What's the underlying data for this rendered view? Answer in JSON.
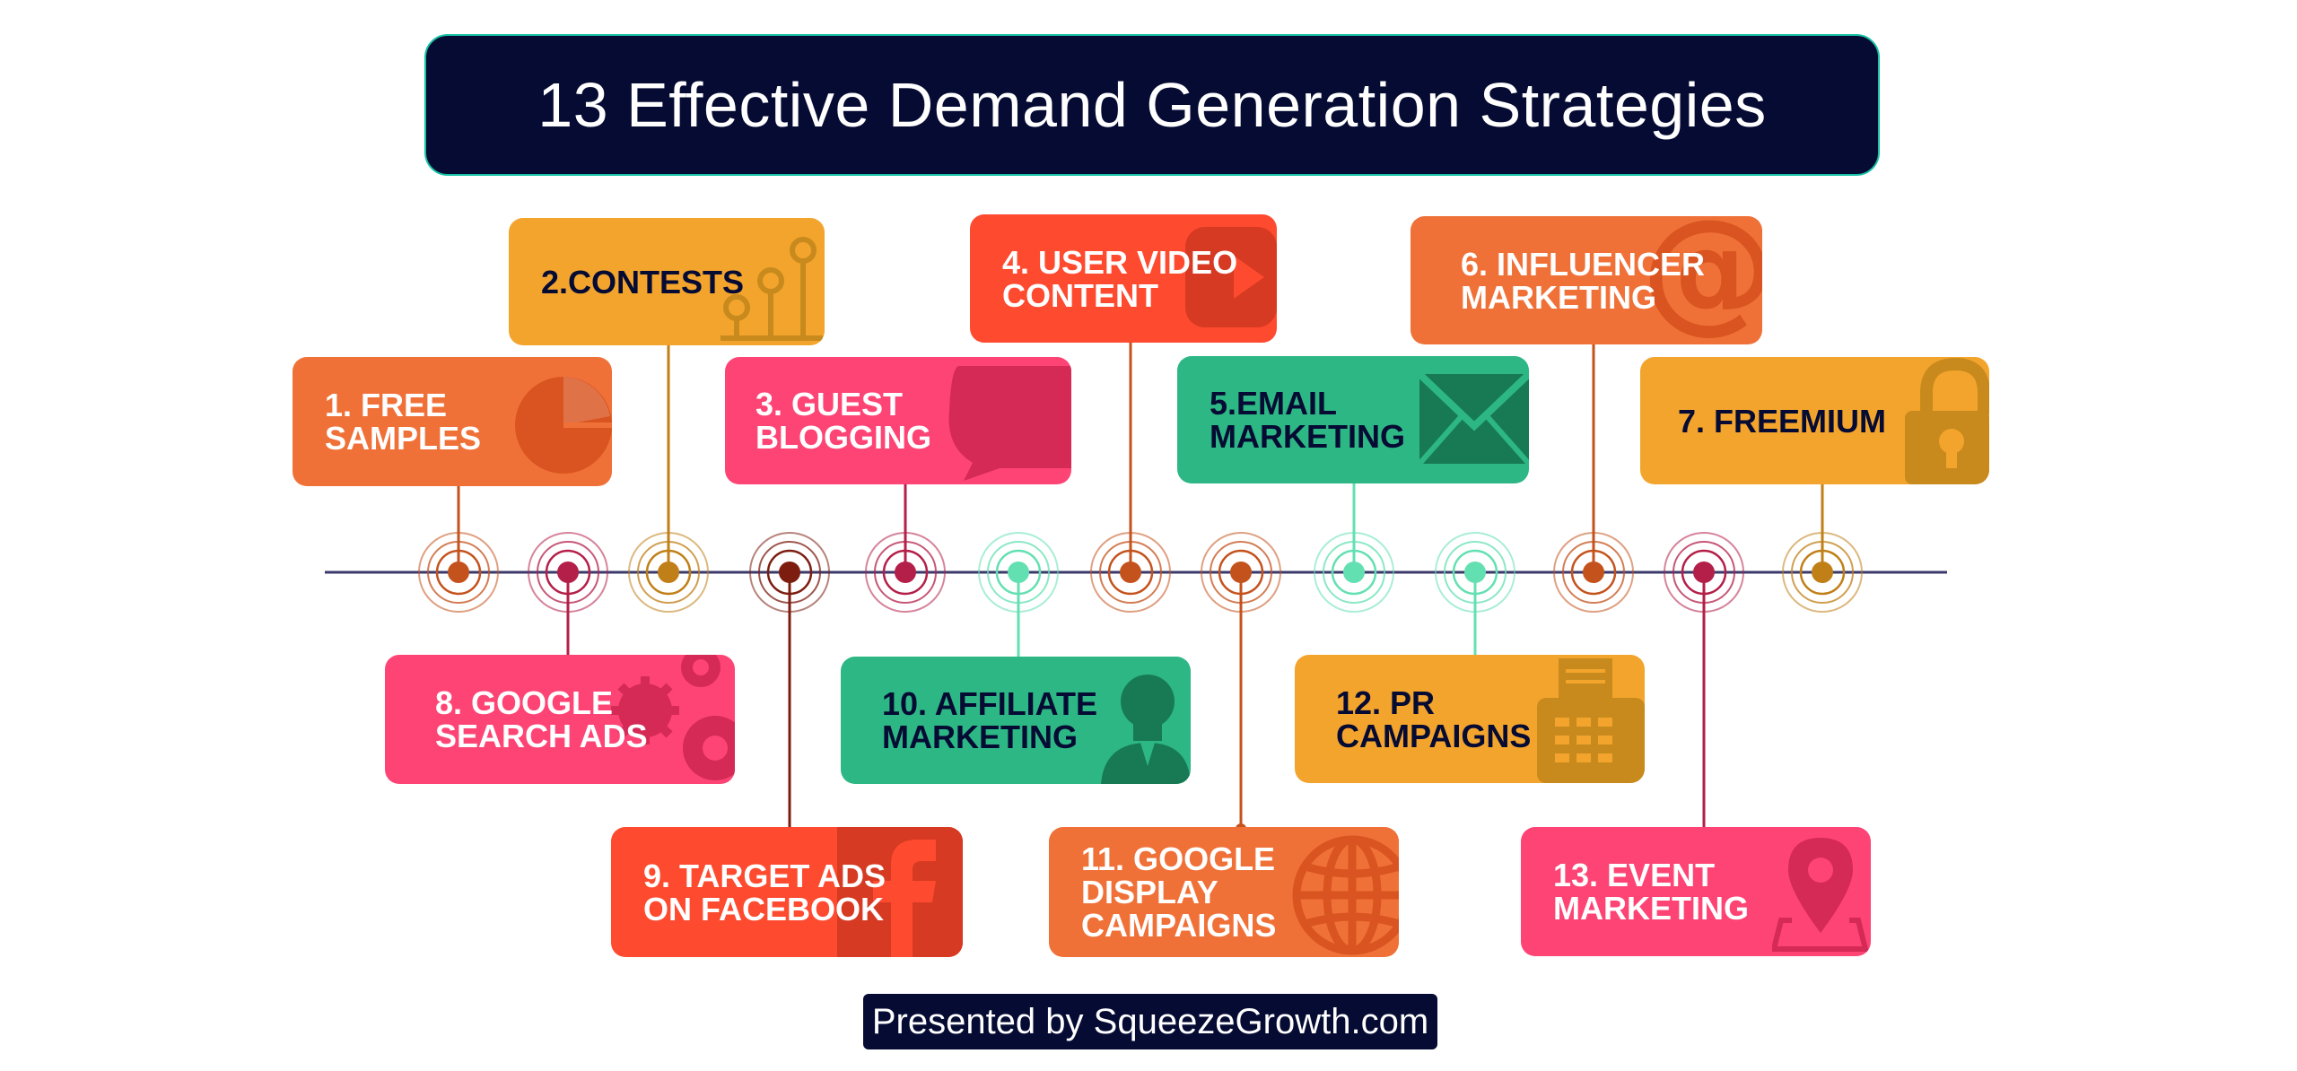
{
  "title": "13 Effective Demand Generation Strategies",
  "footer": "Presented by SqueezeGrowth.com",
  "palette": {
    "orange": "#f07138",
    "amber": "#f3a42d",
    "pink": "#fe4475",
    "red": "#fe4a2f",
    "green": "#2db784",
    "navy": "#050b33",
    "timeline": "#3b3a6b"
  },
  "strategies": [
    {
      "label": "1. FREE\nSAMPLES",
      "icon": "pie-chart-icon",
      "color": "orange",
      "text_color": "light"
    },
    {
      "label": "2.CONTESTS",
      "icon": "pins-icon",
      "color": "amber",
      "text_color": "dark"
    },
    {
      "label": "3. GUEST\nBLOGGING",
      "icon": "speech-bubble-icon",
      "color": "pink",
      "text_color": "light"
    },
    {
      "label": "4. USER VIDEO\nCONTENT",
      "icon": "play-button-icon",
      "color": "red",
      "text_color": "light"
    },
    {
      "label": "5.EMAIL\nMARKETING",
      "icon": "envelope-icon",
      "color": "green",
      "text_color": "dark"
    },
    {
      "label": "6. INFLUENCER\nMARKETING",
      "icon": "at-sign-icon",
      "color": "orange",
      "text_color": "light"
    },
    {
      "label": "7. FREEMIUM",
      "icon": "padlock-icon",
      "color": "amber",
      "text_color": "dark"
    },
    {
      "label": "8. GOOGLE\nSEARCH ADS",
      "icon": "gears-icon",
      "color": "pink",
      "text_color": "light"
    },
    {
      "label": "9. TARGET ADS\nON FACEBOOK",
      "icon": "facebook-icon",
      "color": "red",
      "text_color": "light"
    },
    {
      "label": "10. AFFILIATE\nMARKETING",
      "icon": "person-icon",
      "color": "green",
      "text_color": "dark"
    },
    {
      "label": "11. GOOGLE\nDISPLAY\nCAMPAIGNS",
      "icon": "globe-icon",
      "color": "orange",
      "text_color": "light"
    },
    {
      "label": "12. PR\nCAMPAIGNS",
      "icon": "fax-machine-icon",
      "color": "amber",
      "text_color": "dark"
    },
    {
      "label": "13. EVENT\nMARKETING",
      "icon": "location-pin-icon",
      "color": "pink",
      "text_color": "light"
    }
  ],
  "nodes": [
    {
      "strategy": 0,
      "color": "#c4521c"
    },
    {
      "strategy": 7,
      "color": "#b41f49"
    },
    {
      "strategy": 1,
      "color": "#c07f17"
    },
    {
      "strategy": 8,
      "color": "#7c1d10"
    },
    {
      "strategy": 2,
      "color": "#b41f49"
    },
    {
      "strategy": 9,
      "color": "#63e0b2"
    },
    {
      "strategy": 3,
      "color": "#c4521c"
    },
    {
      "strategy": 10,
      "color": "#c4521c"
    },
    {
      "strategy": 4,
      "color": "#63e0b2"
    },
    {
      "strategy": 11,
      "color": "#63e0b2"
    },
    {
      "strategy": 5,
      "color": "#c4521c"
    },
    {
      "strategy": 12,
      "color": "#b41f49"
    },
    {
      "strategy": 6,
      "color": "#c07f17"
    }
  ]
}
